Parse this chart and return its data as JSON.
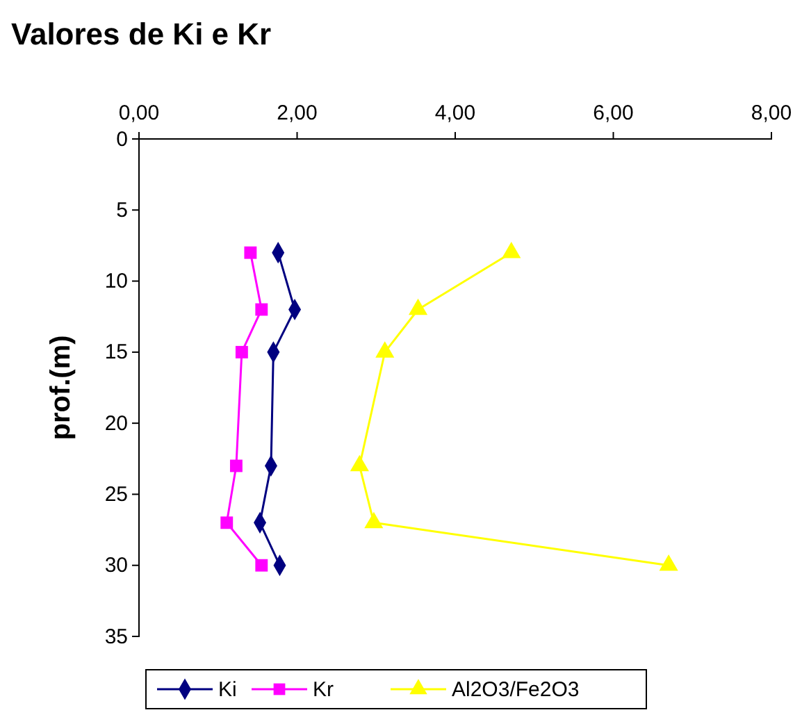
{
  "chart_data": {
    "type": "line",
    "title": "Valores de Ki e Kr",
    "ylabel": "prof.(m)",
    "xlim": [
      0,
      8
    ],
    "xticks": [
      {
        "value": 0,
        "label": "0,00"
      },
      {
        "value": 2,
        "label": "2,00"
      },
      {
        "value": 4,
        "label": "4,00"
      },
      {
        "value": 6,
        "label": "6,00"
      },
      {
        "value": 8,
        "label": "8,00"
      }
    ],
    "ylim": [
      35,
      0
    ],
    "yticks": [
      0,
      5,
      10,
      15,
      20,
      25,
      30,
      35
    ],
    "grid": false,
    "legend": "bottom",
    "series": [
      {
        "name": "Ki",
        "color": "#000080",
        "marker": "diamond",
        "x": [
          1.76,
          1.97,
          1.7,
          1.67,
          1.53,
          1.78
        ],
        "values": [
          8,
          12,
          15,
          23,
          27,
          30
        ]
      },
      {
        "name": "Kr",
        "color": "#ff00ff",
        "marker": "square",
        "x": [
          1.41,
          1.55,
          1.3,
          1.23,
          1.11,
          1.55
        ],
        "values": [
          8,
          12,
          15,
          23,
          27,
          30
        ]
      },
      {
        "name": "Al2O3/Fe2O3",
        "color": "#ffff00",
        "marker": "triangle",
        "x": [
          4.71,
          3.53,
          3.11,
          2.79,
          2.97,
          6.7
        ],
        "values": [
          8,
          12,
          15,
          23,
          27,
          30
        ]
      }
    ]
  }
}
